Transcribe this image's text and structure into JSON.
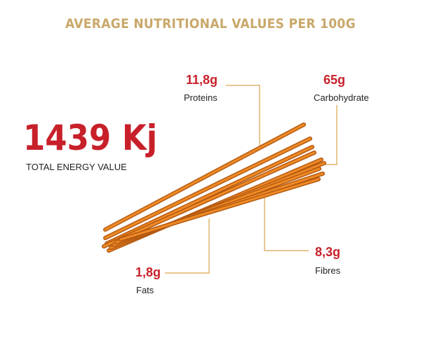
{
  "header": {
    "title": "AVERAGE NUTRITIONAL VALUES PER 100G"
  },
  "energy": {
    "value": "1439 Kj",
    "label": "TOTAL ENERGY VALUE"
  },
  "nutrients": [
    {
      "value": "11,8g",
      "name": "Proteins"
    },
    {
      "value": "65g",
      "name": "Carbohydrate"
    },
    {
      "value": "8,3g",
      "name": "Fibres"
    },
    {
      "value": "1,8g",
      "name": "Fats"
    }
  ]
}
